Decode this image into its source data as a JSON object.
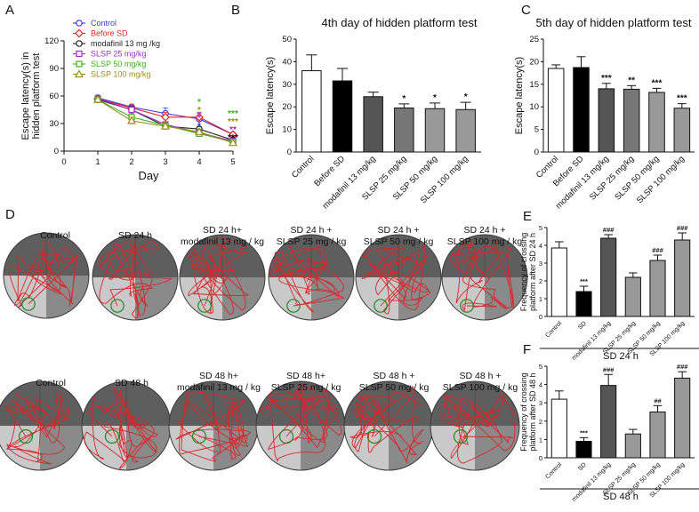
{
  "panel_labels": {
    "A": "A",
    "B": "B",
    "C": "C",
    "D": "D",
    "E": "E",
    "F": "F"
  },
  "chart_data": [
    {
      "id": "A",
      "type": "line",
      "title": "",
      "xlabel": "Day",
      "ylabel_lines": [
        "Escape latency(s) in",
        "hidden platform test"
      ],
      "xlim": [
        0,
        5
      ],
      "ylim": [
        0,
        120
      ],
      "xticks": [
        0,
        1,
        2,
        3,
        4,
        5
      ],
      "yticks": [
        0,
        30,
        60,
        90,
        120
      ],
      "x": [
        1,
        2,
        3,
        4,
        5
      ],
      "series": [
        {
          "name": "Control",
          "color": "#3a3ad8",
          "marker": "circle",
          "values": [
            58,
            48,
            41,
            35,
            18
          ],
          "errors": [
            3,
            3,
            6,
            7,
            2
          ]
        },
        {
          "name": "Before SD",
          "color": "#e8262a",
          "marker": "diamond",
          "values": [
            57,
            47,
            37,
            37,
            18
          ],
          "errors": [
            3,
            4,
            5,
            4,
            2
          ]
        },
        {
          "name": "modafinil 13 mg /kg",
          "color": "#222222",
          "marker": "circle",
          "values": [
            56,
            45,
            27,
            24,
            12
          ],
          "errors": [
            3,
            4,
            3,
            3,
            2
          ]
        },
        {
          "name": "SLSP 25 mg/kg",
          "color": "#9b2fcc",
          "marker": "square",
          "values": [
            57,
            45,
            29,
            20,
            11
          ],
          "errors": [
            3,
            6,
            3,
            3,
            2
          ]
        },
        {
          "name": "SLSP 50 mg/kg",
          "color": "#3cb31c",
          "marker": "square",
          "values": [
            56,
            37,
            28,
            19,
            10
          ],
          "errors": [
            3,
            4,
            3,
            3,
            2
          ]
        },
        {
          "name": "SLSP 100 mg/kg",
          "color": "#9a8e1a",
          "marker": "triangle",
          "values": [
            56,
            33,
            27,
            21,
            9
          ],
          "errors": [
            3,
            4,
            3,
            3,
            2
          ]
        }
      ],
      "annotations": [
        {
          "x": 4,
          "text": "*",
          "color": "#3cb31c"
        },
        {
          "x": 4,
          "text": "*",
          "color": "#9a8e1a"
        },
        {
          "x": 4,
          "text": "*",
          "color": "#9b2fcc"
        },
        {
          "x": 4,
          "text": "*",
          "color": "#3a3ad8"
        },
        {
          "x": 5,
          "text": "***",
          "color": "#3cb31c"
        },
        {
          "x": 5,
          "text": "***",
          "color": "#9a8e1a"
        },
        {
          "x": 5,
          "text": "**",
          "color": "#9b2fcc"
        },
        {
          "x": 5,
          "text": "***",
          "color": "#111111"
        }
      ]
    },
    {
      "id": "B",
      "type": "bar",
      "title": "4th day of hidden platform test",
      "xlabel": "",
      "ylabel": "Escape latency(s)",
      "ylim": [
        0,
        50
      ],
      "yticks": [
        0,
        10,
        20,
        30,
        40,
        50
      ],
      "categories": [
        "Control",
        "Before SD",
        "modafinil 13 mg/kg",
        "SLSP 25 mg/kg",
        "SLSP 50 mg/kg",
        "SLSP 100 mg/kg"
      ],
      "values": [
        36,
        31.5,
        24.5,
        19.5,
        19.2,
        18.8
      ],
      "errors": [
        7,
        5.5,
        2,
        1.8,
        2.5,
        3.2
      ],
      "fills": [
        "#ffffff",
        "#000000",
        "#555555",
        "#777777",
        "#999999",
        "#999999"
      ],
      "sig": [
        "",
        "",
        "",
        "*",
        "*",
        "*"
      ]
    },
    {
      "id": "C",
      "type": "bar",
      "title": "5th day of hidden platform test",
      "xlabel": "",
      "ylabel": "Escape latency(s)",
      "ylim": [
        0,
        25
      ],
      "yticks": [
        0,
        5,
        10,
        15,
        20,
        25
      ],
      "categories": [
        "Control",
        "Before SD",
        "modafinil 13 mg/kg",
        "SLSP 25 mg/kg",
        "SLSP 50 mg/kg",
        "SLSP 100 mg/kg"
      ],
      "values": [
        18.5,
        18.7,
        14,
        13.9,
        13.2,
        9.7
      ],
      "errors": [
        0.8,
        2.4,
        1.2,
        0.8,
        0.9,
        1.0
      ],
      "fills": [
        "#ffffff",
        "#000000",
        "#555555",
        "#777777",
        "#999999",
        "#999999"
      ],
      "sig": [
        "",
        "",
        "***",
        "**",
        "***",
        "***"
      ]
    },
    {
      "id": "E",
      "type": "bar",
      "title": "",
      "xlabel": "SD 24 h",
      "ylabel_lines": [
        "Frequency of crossing",
        "platform after SD 24 h"
      ],
      "ylim": [
        0,
        5
      ],
      "yticks": [
        0,
        1,
        2,
        3,
        4,
        5
      ],
      "categories": [
        "Control",
        "SD",
        "modafinil 13 mg/kg",
        "SLSP 25 mg/kg",
        "SLSP 50 mg/kg",
        "SLSP 100 mg/kg"
      ],
      "values": [
        3.85,
        1.4,
        4.4,
        2.2,
        3.15,
        4.3
      ],
      "errors": [
        0.35,
        0.3,
        0.2,
        0.25,
        0.3,
        0.4
      ],
      "fills": [
        "#ffffff",
        "#000000",
        "#555555",
        "#999999",
        "#999999",
        "#999999"
      ],
      "sig": [
        "",
        "***",
        "###",
        "",
        "###",
        "###"
      ]
    },
    {
      "id": "F",
      "type": "bar",
      "title": "",
      "xlabel": "SD 48 h",
      "ylabel_lines": [
        "Frequency of crossing",
        "platform after SD 48 h"
      ],
      "ylim": [
        0,
        5
      ],
      "yticks": [
        0,
        1,
        2,
        3,
        4,
        5
      ],
      "categories": [
        "Control",
        "SD",
        "modafinil 13 mg/kg",
        "SLSP 25 mg/kg",
        "SLSP 50 mg/kg",
        "SLSP 100 mg/kg"
      ],
      "values": [
        3.2,
        0.9,
        3.95,
        1.3,
        2.5,
        4.35
      ],
      "errors": [
        0.45,
        0.2,
        0.6,
        0.25,
        0.35,
        0.35
      ],
      "fills": [
        "#ffffff",
        "#000000",
        "#555555",
        "#999999",
        "#999999",
        "#999999"
      ],
      "sig": [
        "",
        "***",
        "###",
        "",
        "##",
        "###"
      ]
    }
  ],
  "maze_panel": {
    "row1_labels": [
      [
        "Control"
      ],
      [
        "SD 24 h"
      ],
      [
        "SD 24 h+",
        "modafinil 13 mg / kg"
      ],
      [
        "SD 24 h +",
        "SLSP 25 mg / kg"
      ],
      [
        "SD 24 h +",
        "SLSP 50 mg / kg"
      ],
      [
        "SD 24 h +",
        "SLSP 100 mg / kg"
      ]
    ],
    "row2_labels": [
      [
        "Control"
      ],
      [
        "SD 48 h"
      ],
      [
        "SD 48 h+",
        "modafinil 13 mg / kg"
      ],
      [
        "SD 48 h+",
        "SLSP 25 mg / kg"
      ],
      [
        "SD 48 h +",
        "SLSP 50 mg / kg"
      ],
      [
        "SD 48 h +",
        "SLSP 100 mg / kg"
      ]
    ],
    "path_color": "#d8262a",
    "platform_color": "#1e8a1e"
  }
}
